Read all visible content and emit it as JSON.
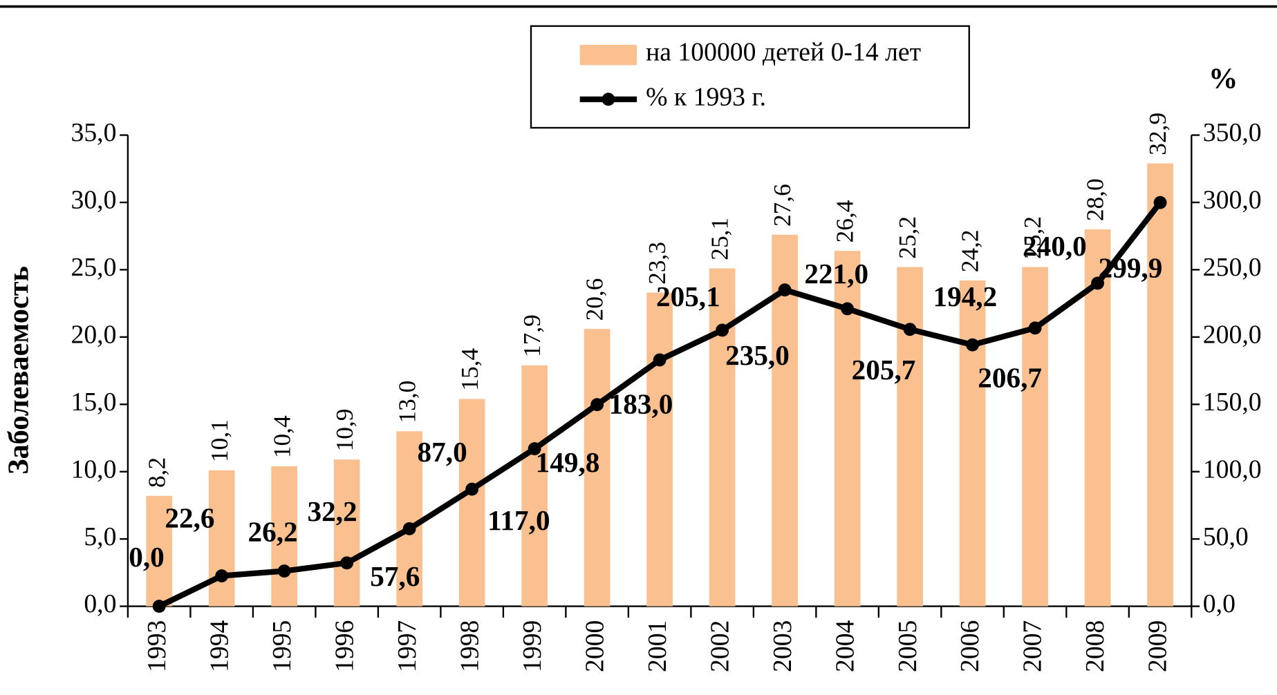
{
  "chart_data": {
    "type": "bar",
    "categories": [
      "1993",
      "1994",
      "1995",
      "1996",
      "1997",
      "1998",
      "1999",
      "2000",
      "2001",
      "2002",
      "2003",
      "2004",
      "2005",
      "2006",
      "2007",
      "2008",
      "2009"
    ],
    "series": [
      {
        "name": "на 100000 детей 0-14 лет",
        "type": "bar",
        "color": "#fac090",
        "values": [
          8.2,
          10.1,
          10.4,
          10.9,
          13.0,
          15.4,
          17.9,
          20.6,
          23.3,
          25.1,
          27.6,
          26.4,
          25.2,
          24.2,
          25.2,
          28.0,
          32.9
        ],
        "value_labels": [
          "8,2",
          "10,1",
          "10,4",
          "10,9",
          "13,0",
          "15,4",
          "17,9",
          "20,6",
          "23,3",
          "25,1",
          "27,6",
          "26,4",
          "25,2",
          "24,2",
          "25,2",
          "28,0",
          "32,9"
        ]
      },
      {
        "name": "% к 1993 г.",
        "type": "line",
        "axis": "y2",
        "color": "#000000",
        "values": [
          0.0,
          22.6,
          26.2,
          32.2,
          57.6,
          87.0,
          117.0,
          149.8,
          183.0,
          205.1,
          235.0,
          221.0,
          205.7,
          194.2,
          206.7,
          240.0,
          299.9
        ],
        "value_labels": [
          "0,0",
          "22,6",
          "26,2",
          "32,2",
          "57,6",
          "87,0",
          "117,0",
          "149,8",
          "183,0",
          "205,1",
          "235,0",
          "221,0",
          "205,7",
          "194,2",
          "206,7",
          "240,0",
          "299,9"
        ]
      }
    ],
    "y_label": "Заболеваемость",
    "y2_label": "%",
    "ylim": [
      0,
      35
    ],
    "yticks": [
      {
        "value": 0,
        "label": "0,0"
      },
      {
        "value": 5,
        "label": "5,0"
      },
      {
        "value": 10,
        "label": "10,0"
      },
      {
        "value": 15,
        "label": "15,0"
      },
      {
        "value": 20,
        "label": "20,0"
      },
      {
        "value": 25,
        "label": "25,0"
      },
      {
        "value": 30,
        "label": "30,0"
      },
      {
        "value": 35,
        "label": "35,0"
      }
    ],
    "y2lim": [
      0,
      350
    ],
    "y2ticks": [
      {
        "value": 0,
        "label": "0,0"
      },
      {
        "value": 50,
        "label": "50,0"
      },
      {
        "value": 100,
        "label": "100,0"
      },
      {
        "value": 150,
        "label": "150,0"
      },
      {
        "value": 200,
        "label": "200,0"
      },
      {
        "value": 250,
        "label": "250,0"
      },
      {
        "value": 300,
        "label": "300,0"
      },
      {
        "value": 350,
        "label": "350,0"
      }
    ],
    "legend": "top"
  }
}
